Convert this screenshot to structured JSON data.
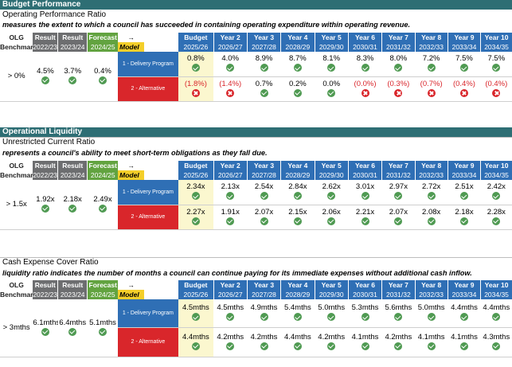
{
  "sections": [
    {
      "header": "Budget Performance",
      "title": "Operating Performance Ratio",
      "description": "measures the extent to which a council has succeeded in containing operating expenditure within operating revenue.",
      "benchmark": "> 0%",
      "results": [
        {
          "value": "4.5%",
          "status": "ok"
        },
        {
          "value": "3.7%",
          "status": "ok"
        }
      ],
      "forecast": {
        "value": "0.4%",
        "status": "ok"
      },
      "programs": [
        {
          "label": "1 - Delivery Program",
          "values": [
            "0.8%",
            "4.0%",
            "8.9%",
            "8.7%",
            "8.1%",
            "8.3%",
            "8.0%",
            "7.2%",
            "7.5%",
            "7.5%"
          ],
          "status": [
            "ok",
            "ok",
            "ok",
            "ok",
            "ok",
            "ok",
            "ok",
            "ok",
            "ok",
            "ok"
          ],
          "negative": [
            false,
            false,
            false,
            false,
            false,
            false,
            false,
            false,
            false,
            false
          ]
        },
        {
          "label": "2 - Alternative",
          "values": [
            "(1.8%)",
            "(1.4%)",
            "0.7%",
            "0.2%",
            "0.0%",
            "(0.0%)",
            "(0.3%)",
            "(0.7%)",
            "(0.4%)",
            "(0.4%)"
          ],
          "status": [
            "bad",
            "bad",
            "ok",
            "ok",
            "ok",
            "bad",
            "bad",
            "bad",
            "bad",
            "bad"
          ],
          "negative": [
            true,
            true,
            false,
            false,
            false,
            true,
            true,
            true,
            true,
            true
          ]
        }
      ]
    },
    {
      "header": "Operational Liquidity",
      "title": "Unrestricted Current Ratio",
      "description": "represents a council's ability to meet short-term obligations as they fall due.",
      "benchmark": "> 1.5x",
      "results": [
        {
          "value": "1.92x",
          "status": "ok"
        },
        {
          "value": "2.18x",
          "status": "ok"
        }
      ],
      "forecast": {
        "value": "2.49x",
        "status": "ok"
      },
      "programs": [
        {
          "label": "1 - Delivery Program",
          "values": [
            "2.34x",
            "2.13x",
            "2.54x",
            "2.84x",
            "2.62x",
            "3.01x",
            "2.97x",
            "2.72x",
            "2.51x",
            "2.42x"
          ],
          "status": [
            "ok",
            "ok",
            "ok",
            "ok",
            "ok",
            "ok",
            "ok",
            "ok",
            "ok",
            "ok"
          ],
          "negative": [
            false,
            false,
            false,
            false,
            false,
            false,
            false,
            false,
            false,
            false
          ]
        },
        {
          "label": "2 - Alternative",
          "values": [
            "2.27x",
            "1.91x",
            "2.07x",
            "2.15x",
            "2.06x",
            "2.21x",
            "2.07x",
            "2.08x",
            "2.18x",
            "2.28x"
          ],
          "status": [
            "ok",
            "ok",
            "ok",
            "ok",
            "ok",
            "ok",
            "ok",
            "ok",
            "ok",
            "ok"
          ],
          "negative": [
            false,
            false,
            false,
            false,
            false,
            false,
            false,
            false,
            false,
            false
          ]
        }
      ]
    },
    {
      "header": "",
      "title": "Cash Expense Cover Ratio",
      "description": "liquidity ratio indicates the number of months a council can continue paying for its immediate expenses without additional cash inflow.",
      "benchmark": "> 3mths",
      "results": [
        {
          "value": "6.1mths",
          "status": "ok"
        },
        {
          "value": "6.4mths",
          "status": "ok"
        }
      ],
      "forecast": {
        "value": "5.1mths",
        "status": "ok"
      },
      "programs": [
        {
          "label": "1 - Delivery Program",
          "values": [
            "4.5mths",
            "4.5mths",
            "4.9mths",
            "5.4mths",
            "5.0mths",
            "5.3mths",
            "5.6mths",
            "5.0mths",
            "4.4mths",
            "4.4mths"
          ],
          "status": [
            "ok",
            "ok",
            "ok",
            "ok",
            "ok",
            "ok",
            "ok",
            "ok",
            "ok",
            "ok"
          ],
          "negative": [
            false,
            false,
            false,
            false,
            false,
            false,
            false,
            false,
            false,
            false
          ]
        },
        {
          "label": "2 - Alternative",
          "values": [
            "4.4mths",
            "4.2mths",
            "4.2mths",
            "4.4mths",
            "4.2mths",
            "4.1mths",
            "4.2mths",
            "4.1mths",
            "4.1mths",
            "4.3mths"
          ],
          "status": [
            "ok",
            "ok",
            "ok",
            "ok",
            "ok",
            "ok",
            "ok",
            "ok",
            "ok",
            "ok"
          ],
          "negative": [
            false,
            false,
            false,
            false,
            false,
            false,
            false,
            false,
            false,
            false
          ]
        }
      ]
    }
  ],
  "columns": {
    "olg": "OLG",
    "benchmark": "Benchmark",
    "result_label": "Result",
    "forecast_label": "Forecast",
    "arrow": "→",
    "model": "Model",
    "years": [
      "2022/23",
      "2023/24",
      "2024/25"
    ],
    "future_labels": [
      "Budget",
      "Year 2",
      "Year 3",
      "Year 4",
      "Year 5",
      "Year 6",
      "Year 7",
      "Year 8",
      "Year 9",
      "Year 10"
    ],
    "future_years": [
      "2025/26",
      "2026/27",
      "2027/28",
      "2028/29",
      "2029/30",
      "2030/31",
      "2031/32",
      "2032/33",
      "2033/34",
      "2034/35"
    ]
  },
  "colors": {
    "section_header": "#2e6e74",
    "result": "#6d6e70",
    "forecast": "#62a340",
    "model": "#f4cf2a",
    "year_header": "#2f6fb5",
    "alternative": "#d9262b",
    "budget_fill": "#fbf7cf",
    "ok_icon": "#4f9a52"
  }
}
